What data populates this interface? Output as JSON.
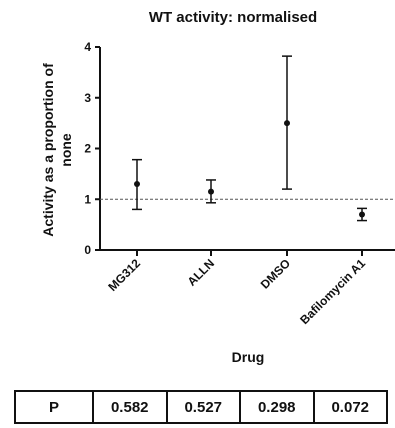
{
  "chart_data": {
    "type": "scatter",
    "title": "WT activity: normalised",
    "xlabel": "Drug",
    "ylabel": "Activity as a proportion of none",
    "ylabel_lines": [
      "Activity as a proportion of",
      "none"
    ],
    "ylim": [
      0,
      4
    ],
    "yticks": [
      "0",
      "1",
      "2",
      "3",
      "4"
    ],
    "categories": [
      "MG312",
      "ALLN",
      "DMSO",
      "Bafilomycin A1"
    ],
    "values": [
      1.3,
      1.15,
      2.5,
      0.7
    ],
    "error_low": [
      0.8,
      0.93,
      1.2,
      0.58
    ],
    "error_high": [
      1.78,
      1.38,
      3.82,
      0.82
    ],
    "reference_line": 1,
    "grid": false,
    "colors": {
      "marks": "#111111",
      "reference_line": "#555555"
    }
  },
  "p_table": {
    "label": "P",
    "values": [
      "0.582",
      "0.527",
      "0.298",
      "0.072"
    ]
  }
}
